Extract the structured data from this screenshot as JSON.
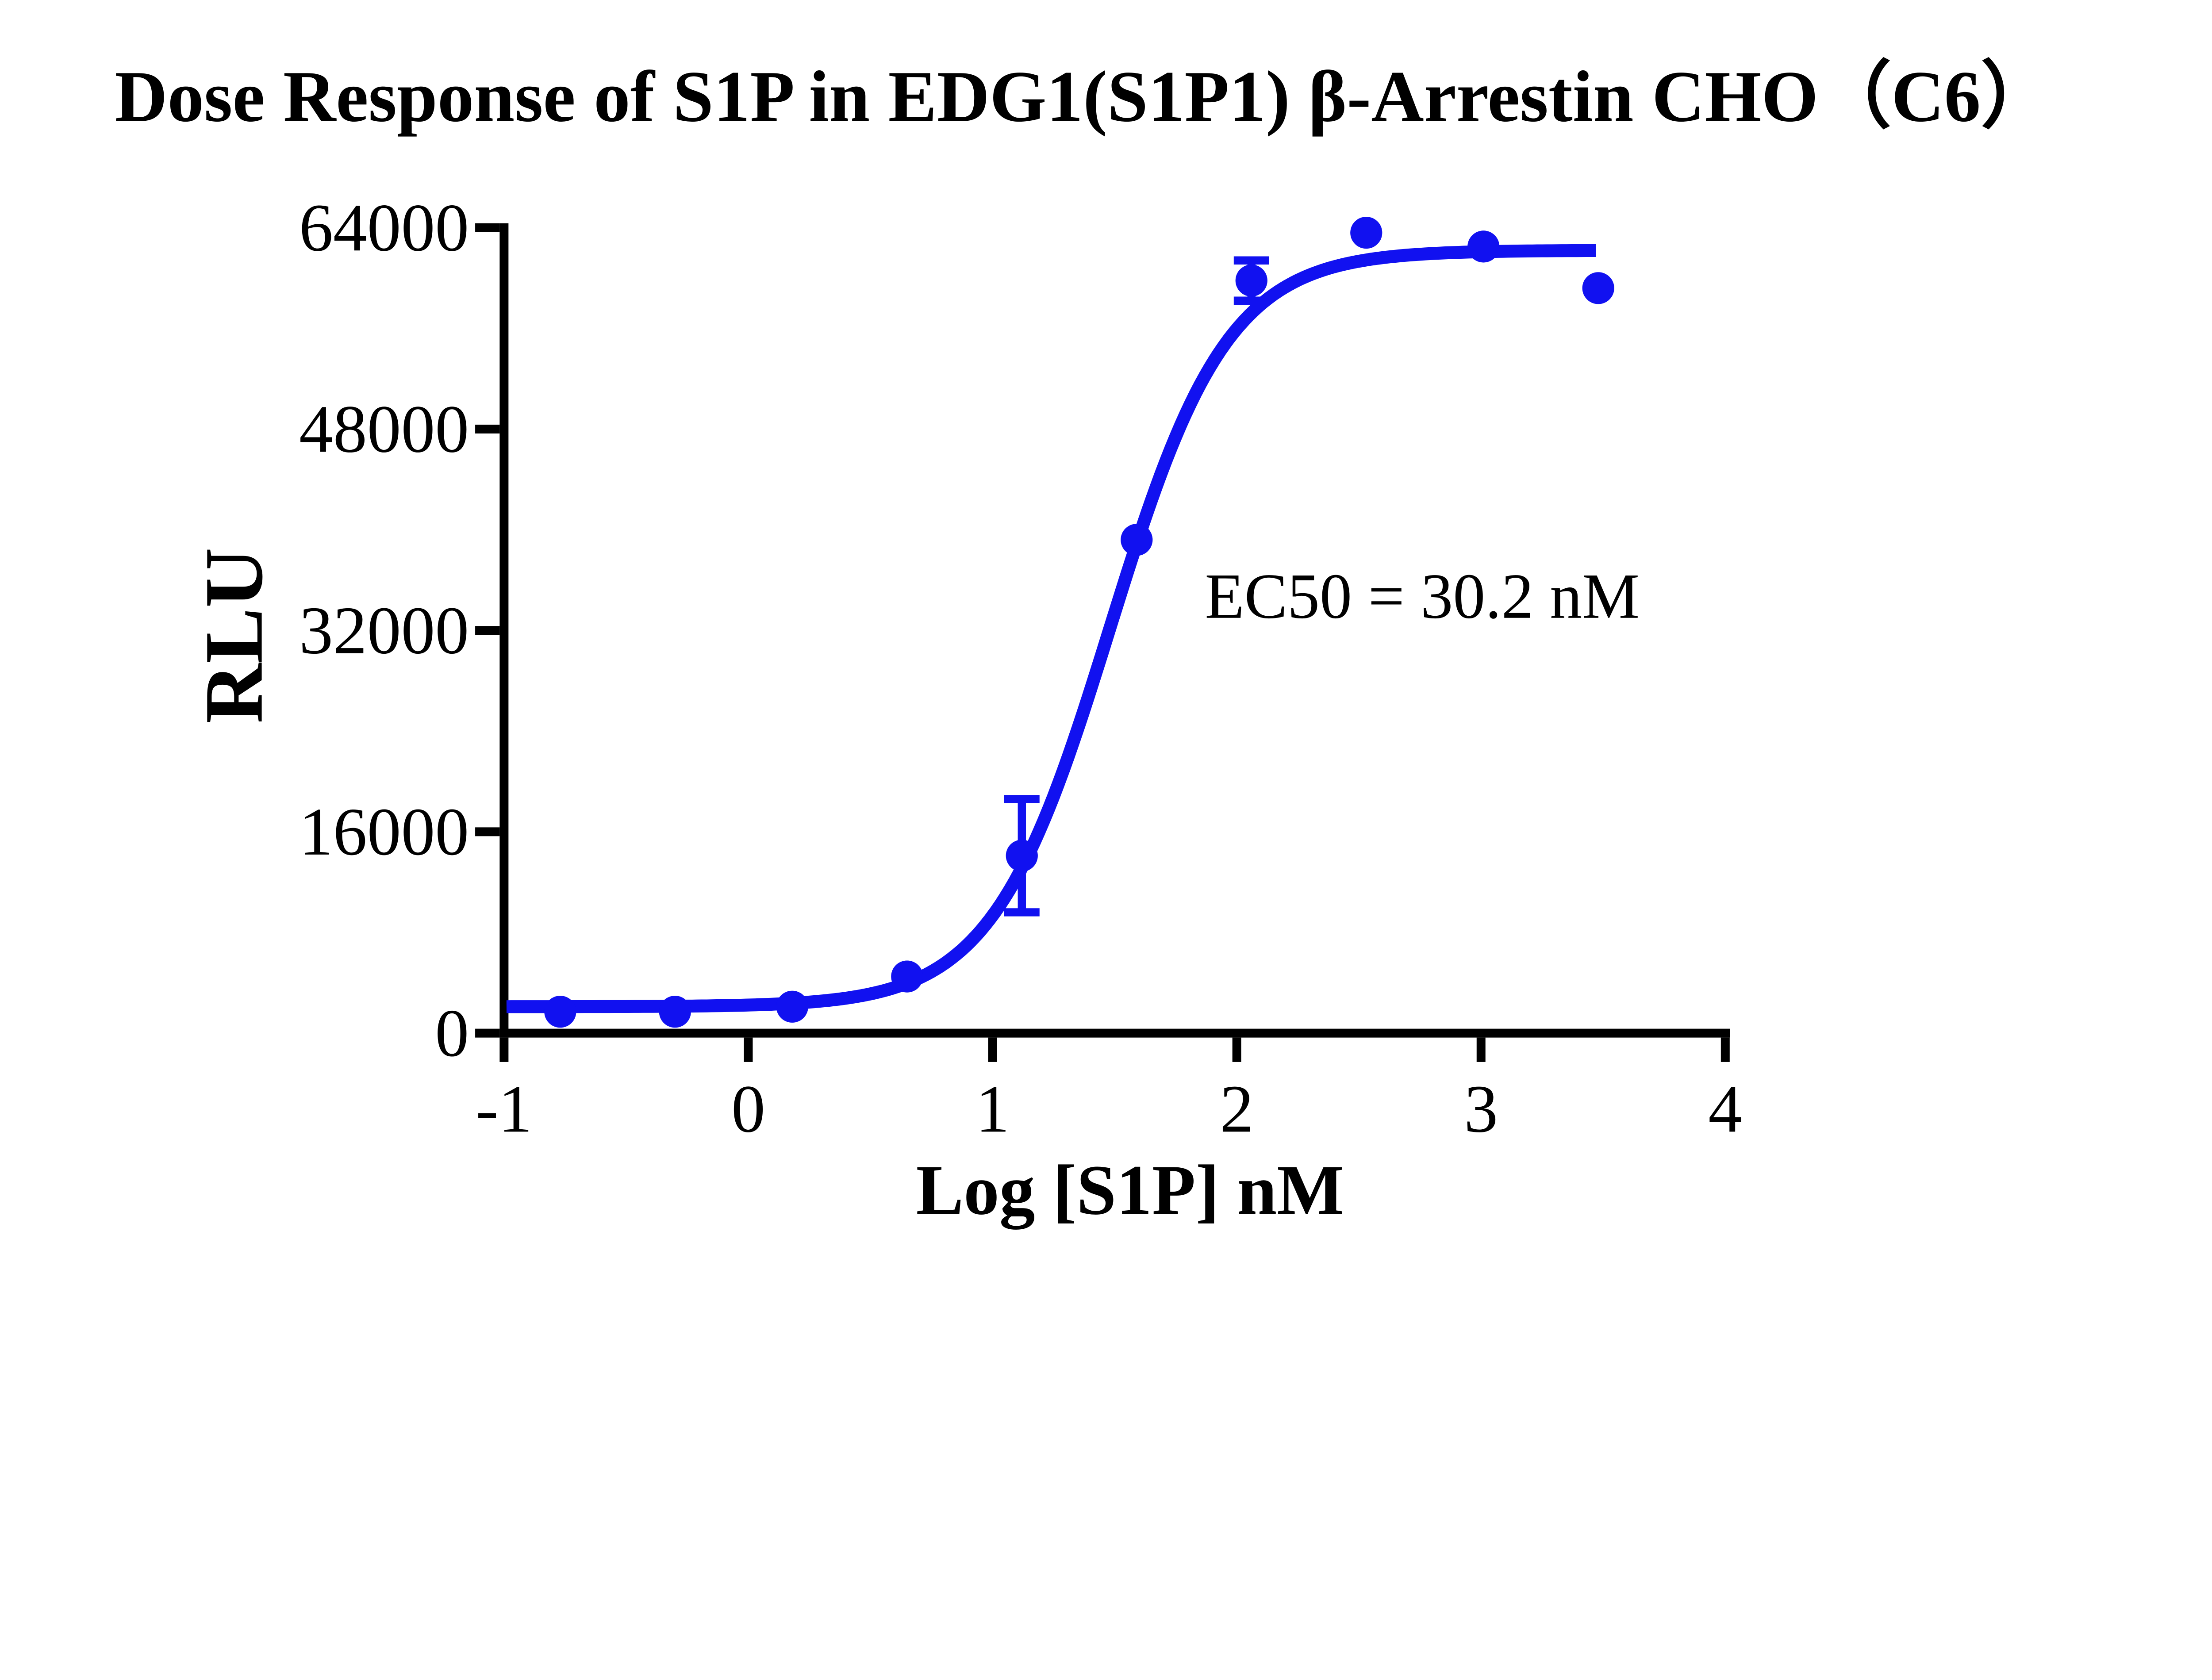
{
  "figure": {
    "title": "Dose Response of S1P in EDG1(S1P1) β-Arrestin CHO（C6）",
    "annotation": "EC50 = 30.2 nM",
    "background_color": "#ffffff",
    "axis_color": "#000000",
    "accent_color": "#1111f0"
  },
  "chart_data": {
    "type": "scatter",
    "title": "Dose Response of S1P in EDG1(S1P1) β-Arrestin CHO（C6）",
    "xlabel": "Log [S1P] nM",
    "ylabel": "RLU",
    "annotation": "EC50 = 30.2 nM",
    "x_range": [
      -1,
      4
    ],
    "y_range": [
      0,
      64000
    ],
    "x_ticks": [
      -1,
      0,
      1,
      2,
      3,
      4
    ],
    "y_ticks": [
      0,
      16000,
      32000,
      48000,
      64000
    ],
    "grid": false,
    "legend": "none",
    "series": [
      {
        "name": "S1P",
        "marker": "circle",
        "color": "#1111f0",
        "points": [
          {
            "x": -0.77,
            "y": 1700
          },
          {
            "x": -0.3,
            "y": 1700
          },
          {
            "x": 0.18,
            "y": 2100
          },
          {
            "x": 0.65,
            "y": 4500
          },
          {
            "x": 1.12,
            "y": 14100,
            "err": 4500
          },
          {
            "x": 1.59,
            "y": 39200
          },
          {
            "x": 2.06,
            "y": 59800,
            "err": 1600
          },
          {
            "x": 2.53,
            "y": 63600
          },
          {
            "x": 3.01,
            "y": 62500
          },
          {
            "x": 3.48,
            "y": 59200
          }
        ]
      }
    ],
    "fit_curve": {
      "model": "four-parameter logistic",
      "bottom": 2100,
      "top": 62200,
      "log_ec50": 1.48,
      "hill": 1.8,
      "x_start": -0.99,
      "x_end": 3.47,
      "ec50_nM": 30.2
    }
  }
}
